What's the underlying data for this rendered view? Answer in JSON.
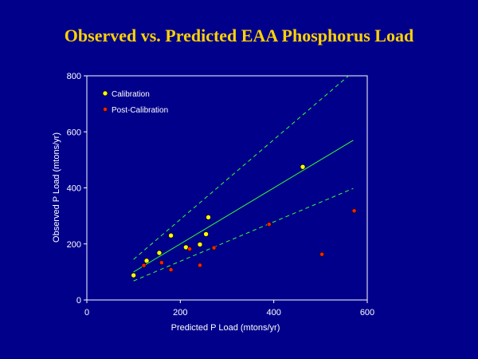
{
  "slide": {
    "title": "Observed vs. Predicted EAA Phosphorus Load"
  },
  "colors": {
    "background": "#00008b",
    "title": "#ffd200",
    "axes": "#ffffff",
    "calibration": "#ffff00",
    "post_calibration": "#ff2000",
    "regression": "#33ff33"
  },
  "chart_data": {
    "type": "scatter",
    "title": "",
    "xlabel": "Predicted P Load (mtons/yr)",
    "ylabel": "Observed P Load (mtons/yr)",
    "xlim": [
      0,
      600
    ],
    "ylim": [
      0,
      800
    ],
    "xticks": [
      "0",
      "200",
      "400",
      "600"
    ],
    "yticks": [
      "0",
      "200",
      "400",
      "600",
      "800"
    ],
    "grid": false,
    "legend_position": "top-left",
    "series": [
      {
        "name": "Calibration",
        "marker": "yellow-circle",
        "points": [
          [
            100,
            88
          ],
          [
            128,
            140
          ],
          [
            155,
            168
          ],
          [
            180,
            230
          ],
          [
            212,
            188
          ],
          [
            242,
            198
          ],
          [
            255,
            235
          ],
          [
            260,
            295
          ],
          [
            462,
            475
          ]
        ]
      },
      {
        "name": "Post-Calibration",
        "marker": "red-circle",
        "points": [
          [
            122,
            123
          ],
          [
            160,
            133
          ],
          [
            180,
            108
          ],
          [
            220,
            182
          ],
          [
            242,
            124
          ],
          [
            272,
            186
          ],
          [
            390,
            270
          ],
          [
            503,
            163
          ],
          [
            572,
            318
          ]
        ]
      }
    ],
    "lines": [
      {
        "role": "fit",
        "style": "solid",
        "points": [
          [
            100,
            100
          ],
          [
            570,
            570
          ]
        ]
      },
      {
        "role": "upper-bound",
        "style": "dashed",
        "points": [
          [
            100,
            145
          ],
          [
            560,
            800
          ]
        ]
      },
      {
        "role": "lower-bound",
        "style": "dashed",
        "points": [
          [
            100,
            68
          ],
          [
            570,
            398
          ]
        ]
      }
    ]
  }
}
